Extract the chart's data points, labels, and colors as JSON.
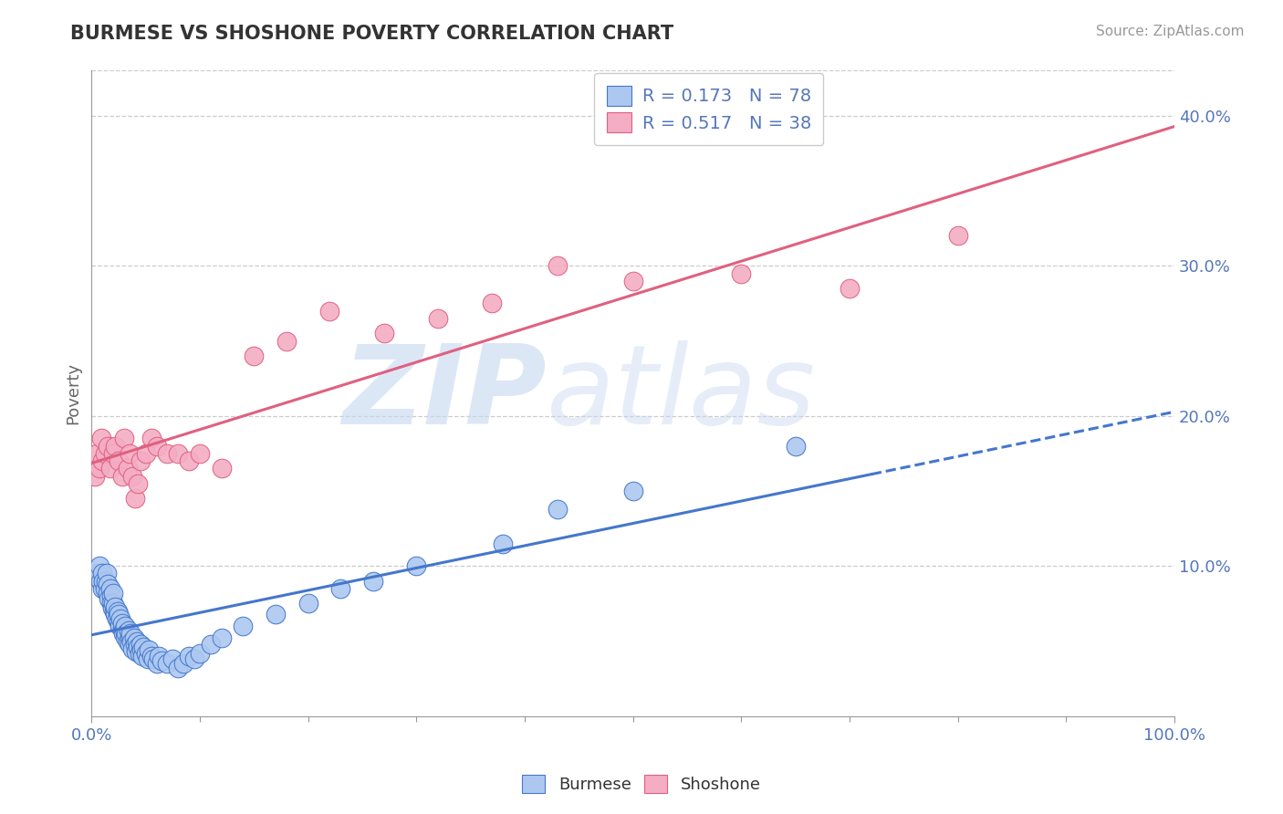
{
  "title": "BURMESE VS SHOSHONE POVERTY CORRELATION CHART",
  "source": "Source: ZipAtlas.com",
  "ylabel": "Poverty",
  "xlim": [
    0.0,
    1.0
  ],
  "ylim": [
    0.0,
    0.43
  ],
  "yticks": [
    0.1,
    0.2,
    0.3,
    0.4
  ],
  "ytick_labels": [
    "10.0%",
    "20.0%",
    "30.0%",
    "40.0%"
  ],
  "xticks": [
    0.0,
    1.0
  ],
  "xtick_labels": [
    "0.0%",
    "100.0%"
  ],
  "burmese_color": "#adc8f0",
  "shoshone_color": "#f4adc4",
  "burmese_line_color": "#4477cc",
  "shoshone_line_color": "#e06080",
  "R_burmese": 0.173,
  "N_burmese": 78,
  "R_shoshone": 0.517,
  "N_shoshone": 38,
  "burmese_x": [
    0.005,
    0.007,
    0.008,
    0.01,
    0.01,
    0.011,
    0.012,
    0.013,
    0.014,
    0.015,
    0.015,
    0.016,
    0.017,
    0.018,
    0.018,
    0.019,
    0.02,
    0.02,
    0.021,
    0.022,
    0.022,
    0.023,
    0.024,
    0.025,
    0.025,
    0.026,
    0.027,
    0.028,
    0.028,
    0.029,
    0.03,
    0.031,
    0.031,
    0.032,
    0.033,
    0.034,
    0.035,
    0.035,
    0.036,
    0.037,
    0.038,
    0.039,
    0.04,
    0.041,
    0.042,
    0.043,
    0.044,
    0.045,
    0.046,
    0.047,
    0.048,
    0.05,
    0.052,
    0.053,
    0.055,
    0.057,
    0.06,
    0.062,
    0.065,
    0.07,
    0.075,
    0.08,
    0.085,
    0.09,
    0.095,
    0.1,
    0.11,
    0.12,
    0.14,
    0.17,
    0.2,
    0.23,
    0.26,
    0.3,
    0.38,
    0.43,
    0.5,
    0.65
  ],
  "burmese_y": [
    0.095,
    0.1,
    0.09,
    0.085,
    0.095,
    0.09,
    0.085,
    0.09,
    0.095,
    0.088,
    0.082,
    0.078,
    0.085,
    0.08,
    0.075,
    0.072,
    0.075,
    0.082,
    0.07,
    0.068,
    0.073,
    0.065,
    0.07,
    0.063,
    0.068,
    0.06,
    0.065,
    0.058,
    0.062,
    0.055,
    0.058,
    0.053,
    0.06,
    0.055,
    0.05,
    0.057,
    0.052,
    0.048,
    0.055,
    0.05,
    0.045,
    0.052,
    0.048,
    0.043,
    0.05,
    0.046,
    0.042,
    0.048,
    0.044,
    0.04,
    0.046,
    0.042,
    0.038,
    0.044,
    0.04,
    0.038,
    0.035,
    0.04,
    0.037,
    0.035,
    0.038,
    0.032,
    0.035,
    0.04,
    0.038,
    0.042,
    0.048,
    0.052,
    0.06,
    0.068,
    0.075,
    0.085,
    0.09,
    0.1,
    0.115,
    0.138,
    0.15,
    0.18
  ],
  "shoshone_x": [
    0.003,
    0.005,
    0.007,
    0.009,
    0.01,
    0.012,
    0.015,
    0.017,
    0.02,
    0.022,
    0.025,
    0.028,
    0.03,
    0.033,
    0.035,
    0.038,
    0.04,
    0.043,
    0.045,
    0.05,
    0.055,
    0.06,
    0.07,
    0.08,
    0.09,
    0.1,
    0.12,
    0.15,
    0.18,
    0.22,
    0.27,
    0.32,
    0.37,
    0.43,
    0.5,
    0.6,
    0.7,
    0.8
  ],
  "shoshone_y": [
    0.16,
    0.175,
    0.165,
    0.185,
    0.17,
    0.175,
    0.18,
    0.165,
    0.175,
    0.18,
    0.17,
    0.16,
    0.185,
    0.165,
    0.175,
    0.16,
    0.145,
    0.155,
    0.17,
    0.175,
    0.185,
    0.18,
    0.175,
    0.175,
    0.17,
    0.175,
    0.165,
    0.24,
    0.25,
    0.27,
    0.255,
    0.265,
    0.275,
    0.3,
    0.29,
    0.295,
    0.285,
    0.32
  ],
  "watermark_zip": "ZIP",
  "watermark_atlas": "atlas",
  "grid_color": "#cccccc",
  "background_color": "#ffffff",
  "title_color": "#333333",
  "tick_label_color": "#5577bb"
}
